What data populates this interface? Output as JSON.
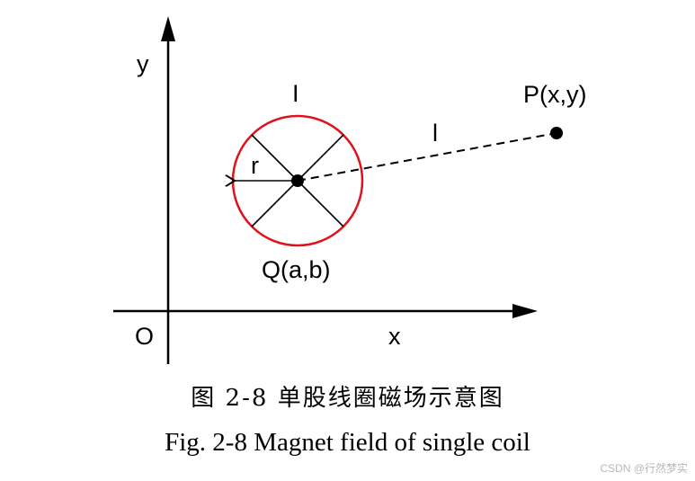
{
  "diagram": {
    "labels": {
      "y_axis": "y",
      "x_axis": "x",
      "origin": "O",
      "current_top": "I",
      "current_line": "l",
      "radius": "r",
      "point_p": "P(x,y)",
      "point_q": "Q(a,b)"
    },
    "colors": {
      "coil": "#e0121b",
      "ink": "#000000"
    }
  },
  "caption": {
    "chinese": "图 2-8 单股线圈磁场示意图",
    "english": "Fig. 2-8 Magnet field of single coil"
  },
  "watermark": "CSDN @行然梦实"
}
